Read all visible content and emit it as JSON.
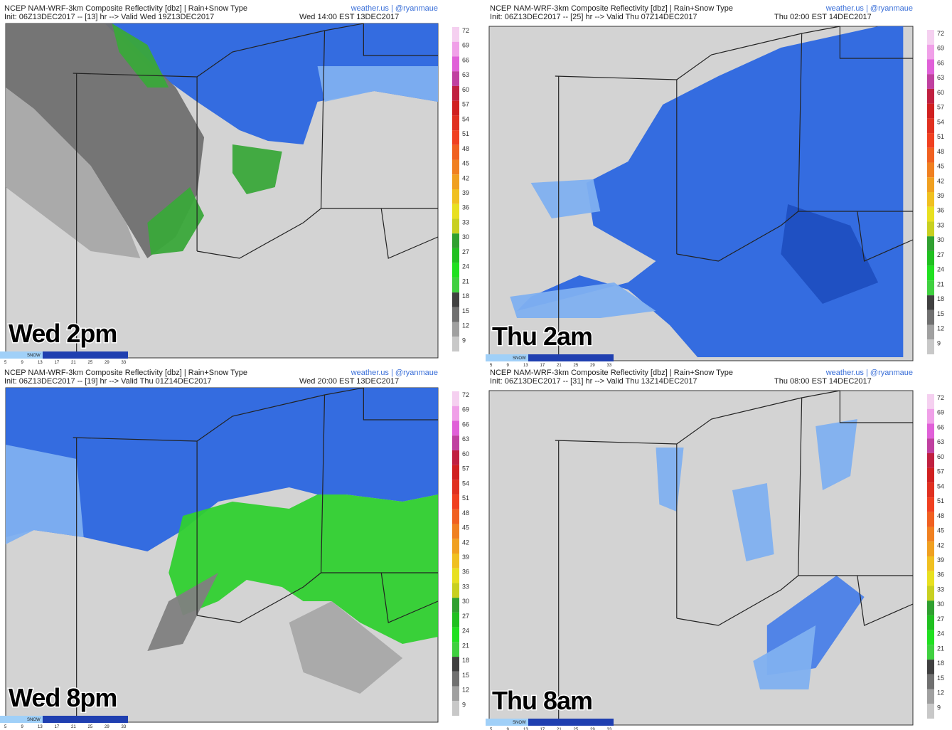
{
  "panels": [
    {
      "title": "NCEP NAM-WRF-3km Composite Reflectivity [dbz] | Rain+Snow Type",
      "credit": "weather.us | @ryanmaue",
      "init": "Init: 06Z13DEC2017 -- [13] hr --> Valid Wed 19Z13DEC2017",
      "valid": "Wed 14:00 EST 13DEC2017",
      "label": "Wed 2pm"
    },
    {
      "title": "NCEP NAM-WRF-3km Composite Reflectivity [dbz] | Rain+Snow Type",
      "credit": "weather.us | @ryanmaue",
      "init": "Init: 06Z13DEC2017 -- [25] hr --> Valid Thu 07Z14DEC2017",
      "valid": "Thu 02:00 EST 14DEC2017",
      "label": "Thu 2am"
    },
    {
      "title": "NCEP NAM-WRF-3km Composite Reflectivity [dbz] | Rain+Snow Type",
      "credit": "weather.us | @ryanmaue",
      "init": "Init: 06Z13DEC2017 -- [19] hr --> Valid Thu 01Z14DEC2017",
      "valid": "Wed 20:00 EST 13DEC2017",
      "label": "Wed 8pm"
    },
    {
      "title": "NCEP NAM-WRF-3km Composite Reflectivity [dbz] | Rain+Snow Type",
      "credit": "weather.us | @ryanmaue",
      "init": "Init: 06Z13DEC2017 -- [31] hr --> Valid Thu 13Z14DEC2017",
      "valid": "Thu 08:00 EST 14DEC2017",
      "label": "Thu 8am"
    }
  ],
  "legend": {
    "colorbar_ticks": [
      "72",
      "69",
      "66",
      "63",
      "60",
      "57",
      "54",
      "51",
      "48",
      "45",
      "42",
      "39",
      "36",
      "33",
      "30",
      "27",
      "24",
      "21",
      "18",
      "15",
      "12",
      "9"
    ],
    "snow_label": "SNOW",
    "snow_ticks": [
      "5",
      "9",
      "13",
      "17",
      "21",
      "25",
      "29",
      "33"
    ]
  }
}
